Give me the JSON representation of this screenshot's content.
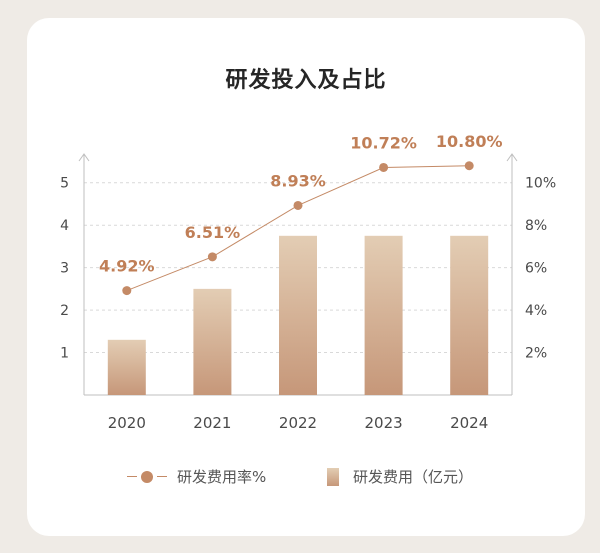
{
  "colors": {
    "bar_top": "#e3cdb4",
    "bar_bottom": "#c69779",
    "line": "#c48a66",
    "label": "#c07f57",
    "axis": "#bfbfbf",
    "grid": "#d9d9d9",
    "tick_text": "#4a4a4a"
  },
  "chart_data": {
    "type": "bar",
    "title": "研发投入及占比",
    "categories": [
      "2020",
      "2021",
      "2022",
      "2023",
      "2024"
    ],
    "series": [
      {
        "name": "研发费用（亿元）",
        "type": "bar",
        "axis": "left",
        "values": [
          1.3,
          2.5,
          3.75,
          3.75,
          3.75
        ]
      },
      {
        "name": "研发费用率%",
        "type": "line",
        "axis": "right",
        "values": [
          4.92,
          6.51,
          8.93,
          10.72,
          10.8
        ],
        "data_labels": [
          "4.92%",
          "6.51%",
          "8.93%",
          "10.72%",
          "10.80%"
        ]
      }
    ],
    "left_axis": {
      "ticks": [
        "1",
        "2",
        "3",
        "4",
        "5"
      ],
      "ylim": [
        0,
        5.3
      ]
    },
    "right_axis": {
      "ticks": [
        "2%",
        "4%",
        "6%",
        "8%",
        "10%"
      ],
      "ylim": [
        0,
        10.6
      ]
    },
    "grid": true,
    "legend_position": "bottom"
  },
  "legend": {
    "line_label": "研发费用率%",
    "bar_label": "研发费用（亿元）"
  }
}
